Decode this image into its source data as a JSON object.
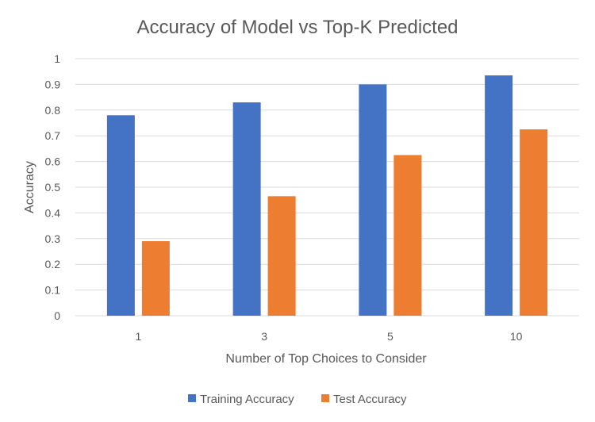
{
  "chart_data": {
    "type": "bar",
    "title": "Accuracy of Model vs Top-K Predicted",
    "xlabel": "Number of Top Choices to Consider",
    "ylabel": "Accuracy",
    "categories": [
      "1",
      "3",
      "5",
      "10"
    ],
    "series": [
      {
        "name": "Training Accuracy",
        "color": "#4472C4",
        "values": [
          0.78,
          0.83,
          0.9,
          0.935
        ]
      },
      {
        "name": "Test Accuracy",
        "color": "#ED7D31",
        "values": [
          0.29,
          0.465,
          0.625,
          0.725
        ]
      }
    ],
    "ylim": [
      0,
      1
    ],
    "yticks": [
      "0",
      "0.1",
      "0.2",
      "0.3",
      "0.4",
      "0.5",
      "0.6",
      "0.7",
      "0.8",
      "0.9",
      "1"
    ],
    "grid": true,
    "legend_position": "bottom"
  }
}
